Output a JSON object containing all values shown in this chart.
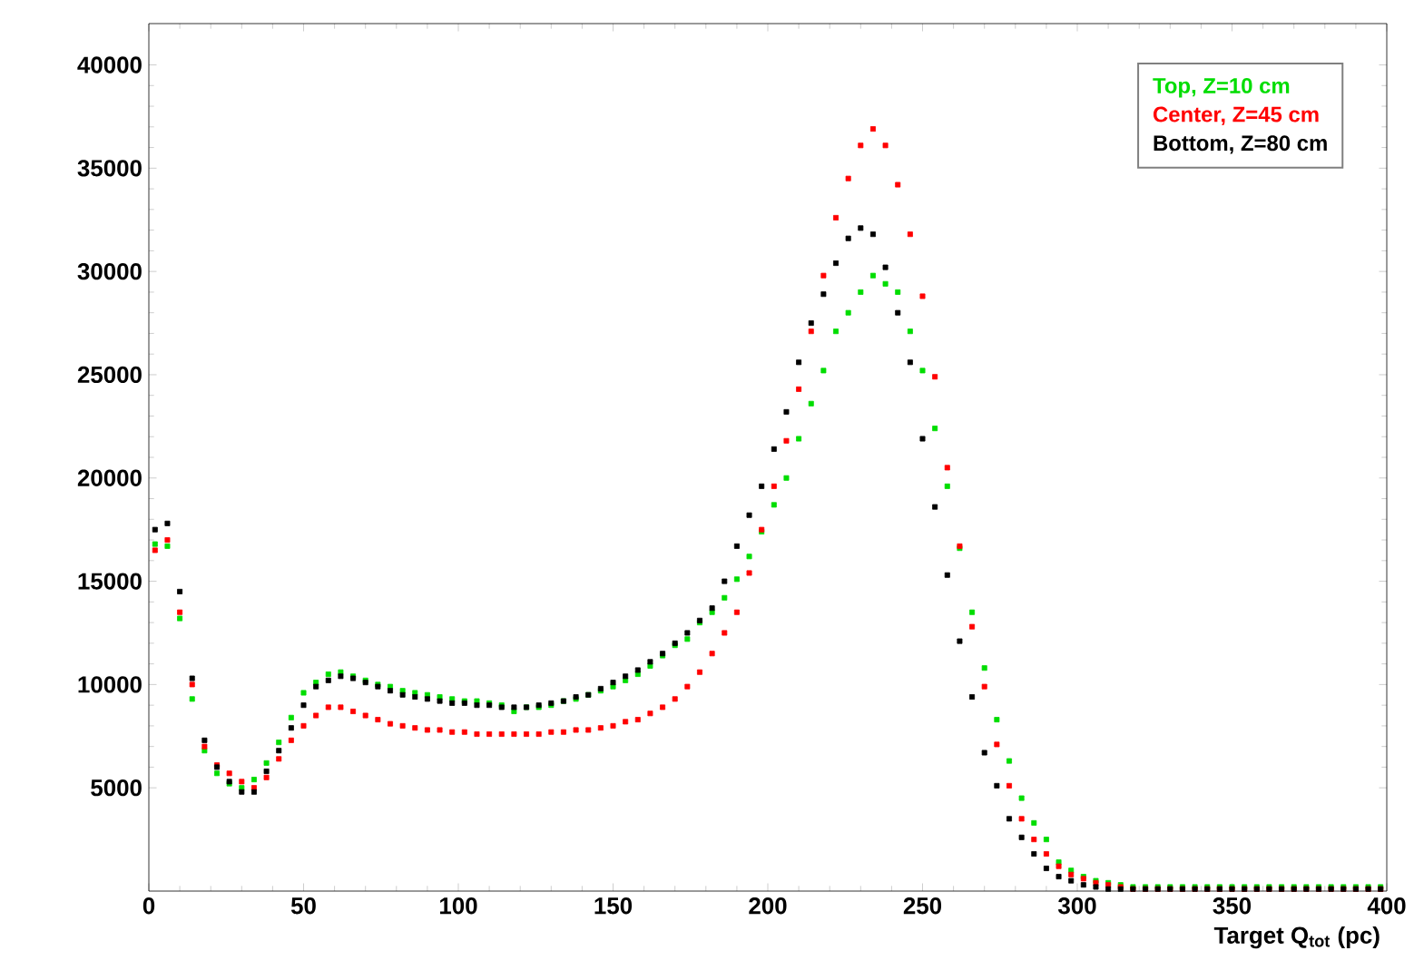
{
  "chart_data": {
    "type": "scatter",
    "xlabel": "Target Q$_{tot}$ (pc)",
    "x": [
      2,
      6,
      10,
      14,
      18,
      22,
      26,
      30,
      34,
      38,
      42,
      46,
      50,
      54,
      58,
      62,
      66,
      70,
      74,
      78,
      82,
      86,
      90,
      94,
      98,
      102,
      106,
      110,
      114,
      118,
      122,
      126,
      130,
      134,
      138,
      142,
      146,
      150,
      154,
      158,
      162,
      166,
      170,
      174,
      178,
      182,
      186,
      190,
      194,
      198,
      202,
      206,
      210,
      214,
      218,
      222,
      226,
      230,
      234,
      238,
      242,
      246,
      250,
      254,
      258,
      262,
      266,
      270,
      274,
      278,
      282,
      286,
      290,
      294,
      298,
      302,
      306,
      310,
      314,
      318,
      322,
      326,
      330,
      334,
      338,
      342,
      346,
      350,
      354,
      358,
      362,
      366,
      370,
      374,
      378,
      382,
      386,
      390,
      394,
      398
    ],
    "series": [
      {
        "name": "Top, Z=10 cm",
        "color": "#00dd00",
        "values": [
          16800,
          16700,
          13200,
          9300,
          6800,
          5700,
          5200,
          5000,
          5400,
          6200,
          7200,
          8400,
          9600,
          10100,
          10500,
          10600,
          10400,
          10200,
          10000,
          9900,
          9700,
          9600,
          9500,
          9400,
          9300,
          9200,
          9200,
          9100,
          9000,
          8700,
          8900,
          8900,
          9000,
          9200,
          9300,
          9500,
          9700,
          9900,
          10200,
          10500,
          10900,
          11400,
          11900,
          12200,
          13000,
          13500,
          14200,
          15100,
          16200,
          17400,
          18700,
          20000,
          21900,
          23600,
          25200,
          27100,
          28000,
          29000,
          29800,
          29400,
          29000,
          27100,
          25200,
          22400,
          19600,
          16600,
          13500,
          10800,
          8300,
          6300,
          4500,
          3300,
          2500,
          1400,
          1000,
          700,
          500,
          400,
          300,
          200,
          200,
          200,
          200,
          200,
          200,
          200,
          200,
          200,
          200,
          200,
          200,
          200,
          200,
          200,
          200,
          200,
          200,
          200,
          200,
          200
        ]
      },
      {
        "name": "Center, Z=45 cm",
        "color": "#ff0000",
        "values": [
          16500,
          17000,
          13500,
          10000,
          7000,
          6100,
          5700,
          5300,
          5000,
          5500,
          6400,
          7300,
          8000,
          8500,
          8900,
          8900,
          8700,
          8500,
          8300,
          8100,
          8000,
          7900,
          7800,
          7800,
          7700,
          7700,
          7600,
          7600,
          7600,
          7600,
          7600,
          7600,
          7700,
          7700,
          7800,
          7800,
          7900,
          8000,
          8200,
          8300,
          8600,
          8900,
          9300,
          9900,
          10600,
          11500,
          12500,
          13500,
          15400,
          17500,
          19600,
          21800,
          24300,
          27100,
          29800,
          32600,
          34500,
          36100,
          36900,
          36100,
          34200,
          31800,
          28800,
          24900,
          20500,
          16700,
          12800,
          9900,
          7100,
          5100,
          3500,
          2500,
          1800,
          1200,
          800,
          600,
          400,
          300,
          200,
          100,
          100,
          100,
          100,
          100,
          100,
          100,
          100,
          100,
          100,
          100,
          100,
          100,
          100,
          100,
          100,
          100,
          100,
          100,
          100,
          100
        ]
      },
      {
        "name": "Bottom, Z=80 cm",
        "color": "#000000",
        "values": [
          17500,
          17800,
          14500,
          10300,
          7300,
          6000,
          5300,
          4800,
          4800,
          5800,
          6800,
          7900,
          9000,
          9900,
          10200,
          10400,
          10300,
          10100,
          9900,
          9700,
          9500,
          9400,
          9300,
          9200,
          9100,
          9100,
          9000,
          9000,
          8900,
          8900,
          8900,
          9000,
          9100,
          9200,
          9400,
          9500,
          9800,
          10100,
          10400,
          10700,
          11100,
          11500,
          12000,
          12500,
          13100,
          13700,
          15000,
          16700,
          18200,
          19600,
          21400,
          23200,
          25600,
          27500,
          28900,
          30400,
          31600,
          32100,
          31800,
          30200,
          28000,
          25600,
          21900,
          18600,
          15300,
          12100,
          9400,
          6700,
          5100,
          3500,
          2600,
          1800,
          1100,
          700,
          500,
          300,
          200,
          100,
          100,
          100,
          100,
          100,
          100,
          100,
          100,
          100,
          100,
          100,
          100,
          100,
          100,
          100,
          100,
          100,
          100,
          100,
          100,
          100,
          100,
          100
        ]
      }
    ],
    "xlim": [
      0,
      400
    ],
    "ylim": [
      0,
      42000
    ],
    "xticks": [
      0,
      50,
      100,
      150,
      200,
      250,
      300,
      350,
      400
    ],
    "yticks": [
      5000,
      10000,
      15000,
      20000,
      25000,
      30000,
      35000,
      40000
    ],
    "grid": false,
    "legend": "top right",
    "marker": "square"
  }
}
